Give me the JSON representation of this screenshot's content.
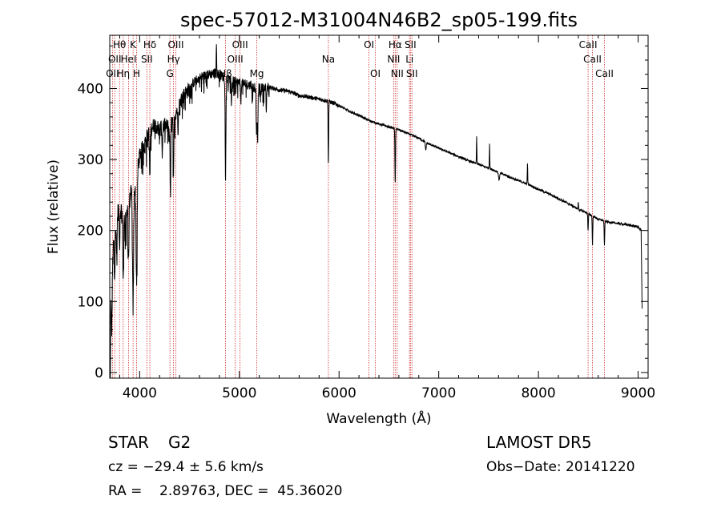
{
  "chart_data": {
    "type": "line",
    "title": "spec-57012-M31004N46B2_sp05-199.fits",
    "xlabel": "Wavelength (Å)",
    "ylabel": "Flux (relative)",
    "xlim": [
      3700,
      9100
    ],
    "ylim": [
      -8,
      475
    ],
    "xticks": [
      4000,
      5000,
      6000,
      7000,
      8000,
      9000
    ],
    "yticks": [
      0,
      100,
      200,
      300,
      400
    ],
    "grid": false,
    "line_color": "#000000",
    "marker_color": "#d03030",
    "continuum": [
      [
        3700,
        80
      ],
      [
        3750,
        210
      ],
      [
        3800,
        235
      ],
      [
        3850,
        215
      ],
      [
        3900,
        245
      ],
      [
        3950,
        265
      ],
      [
        4000,
        305
      ],
      [
        4050,
        325
      ],
      [
        4100,
        340
      ],
      [
        4150,
        350
      ],
      [
        4200,
        342
      ],
      [
        4250,
        348
      ],
      [
        4300,
        345
      ],
      [
        4350,
        362
      ],
      [
        4400,
        380
      ],
      [
        4450,
        392
      ],
      [
        4500,
        400
      ],
      [
        4550,
        410
      ],
      [
        4600,
        415
      ],
      [
        4650,
        418
      ],
      [
        4700,
        420
      ],
      [
        4750,
        422
      ],
      [
        4800,
        420
      ],
      [
        4850,
        415
      ],
      [
        4900,
        412
      ],
      [
        5000,
        408
      ],
      [
        5100,
        405
      ],
      [
        5200,
        400
      ],
      [
        5300,
        402
      ],
      [
        5400,
        398
      ],
      [
        5500,
        396
      ],
      [
        5600,
        390
      ],
      [
        5700,
        388
      ],
      [
        5800,
        385
      ],
      [
        5900,
        382
      ],
      [
        6000,
        376
      ],
      [
        6100,
        368
      ],
      [
        6200,
        362
      ],
      [
        6300,
        355
      ],
      [
        6400,
        350
      ],
      [
        6500,
        346
      ],
      [
        6600,
        342
      ],
      [
        6700,
        336
      ],
      [
        6800,
        330
      ],
      [
        6900,
        322
      ],
      [
        7000,
        316
      ],
      [
        7100,
        310
      ],
      [
        7200,
        304
      ],
      [
        7300,
        298
      ],
      [
        7400,
        293
      ],
      [
        7500,
        288
      ],
      [
        7600,
        282
      ],
      [
        7700,
        276
      ],
      [
        7800,
        270
      ],
      [
        7900,
        265
      ],
      [
        8000,
        258
      ],
      [
        8100,
        252
      ],
      [
        8200,
        245
      ],
      [
        8300,
        238
      ],
      [
        8400,
        230
      ],
      [
        8500,
        224
      ],
      [
        8600,
        216
      ],
      [
        8700,
        212
      ],
      [
        8800,
        210
      ],
      [
        8900,
        208
      ],
      [
        9000,
        205
      ],
      [
        9030,
        200
      ],
      [
        9040,
        90
      ]
    ],
    "features": [
      {
        "x": 3705,
        "depth": 120,
        "width": 4
      },
      {
        "x": 3720,
        "depth": 70,
        "width": 6
      },
      {
        "x": 3750,
        "depth": 70,
        "width": 6
      },
      {
        "x": 3770,
        "depth": 60,
        "width": 5
      },
      {
        "x": 3798,
        "depth": 60,
        "width": 5
      },
      {
        "x": 3835,
        "depth": 90,
        "width": 6
      },
      {
        "x": 3889,
        "depth": 80,
        "width": 6
      },
      {
        "x": 3934,
        "depth": 160,
        "width": 8
      },
      {
        "x": 3969,
        "depth": 150,
        "width": 8
      },
      {
        "x": 4102,
        "depth": 70,
        "width": 5
      },
      {
        "x": 4227,
        "depth": 40,
        "width": 4
      },
      {
        "x": 4308,
        "depth": 90,
        "width": 5
      },
      {
        "x": 4340,
        "depth": 80,
        "width": 5
      },
      {
        "x": 4384,
        "depth": 40,
        "width": 4
      },
      {
        "x": 4861,
        "depth": 130,
        "width": 5
      },
      {
        "x": 4920,
        "depth": 30,
        "width": 4
      },
      {
        "x": 5015,
        "depth": 30,
        "width": 4
      },
      {
        "x": 5172,
        "depth": 70,
        "width": 5
      },
      {
        "x": 5183,
        "depth": 80,
        "width": 5
      },
      {
        "x": 5270,
        "depth": 35,
        "width": 4
      },
      {
        "x": 5893,
        "depth": 90,
        "width": 4
      },
      {
        "x": 6563,
        "depth": 80,
        "width": 4
      },
      {
        "x": 6870,
        "depth": 12,
        "width": 6
      },
      {
        "x": 7605,
        "depth": 10,
        "width": 8
      },
      {
        "x": 8498,
        "depth": 25,
        "width": 4
      },
      {
        "x": 8542,
        "depth": 40,
        "width": 4
      },
      {
        "x": 8662,
        "depth": 35,
        "width": 4
      }
    ],
    "emissions": [
      {
        "x": 4770,
        "height": 50
      },
      {
        "x": 7380,
        "height": 40
      },
      {
        "x": 7510,
        "height": 35
      },
      {
        "x": 7890,
        "height": 30
      },
      {
        "x": 8400,
        "height": 10
      }
    ],
    "lines": [
      {
        "x": 3727,
        "label": "OII",
        "row": 2
      },
      {
        "x": 3750,
        "label": "OII",
        "row": 1
      },
      {
        "x": 3798,
        "label": "Hθ",
        "row": 0
      },
      {
        "x": 3835,
        "label": "Hη",
        "row": 2
      },
      {
        "x": 3889,
        "label": "HeI",
        "row": 1
      },
      {
        "x": 3934,
        "label": "K",
        "row": 0
      },
      {
        "x": 3969,
        "label": "H",
        "row": 2
      },
      {
        "x": 4072,
        "label": "SII",
        "row": 1
      },
      {
        "x": 4102,
        "label": "Hδ",
        "row": 0
      },
      {
        "x": 4304,
        "label": "G",
        "row": 2
      },
      {
        "x": 4340,
        "label": "Hγ",
        "row": 1
      },
      {
        "x": 4363,
        "label": "OIII",
        "row": 0
      },
      {
        "x": 4861,
        "label": "Hβ",
        "row": 2
      },
      {
        "x": 4959,
        "label": "OIII",
        "row": 1
      },
      {
        "x": 5007,
        "label": "OIII",
        "row": 0
      },
      {
        "x": 5175,
        "label": "Mg",
        "row": 2
      },
      {
        "x": 5893,
        "label": "Na",
        "row": 1
      },
      {
        "x": 6300,
        "label": "OI",
        "row": 0
      },
      {
        "x": 6364,
        "label": "OI",
        "row": 2
      },
      {
        "x": 6548,
        "label": "NII",
        "row": 1
      },
      {
        "x": 6563,
        "label": "Hα",
        "row": 0
      },
      {
        "x": 6583,
        "label": "NII",
        "row": 2
      },
      {
        "x": 6707,
        "label": "Li",
        "row": 1
      },
      {
        "x": 6716,
        "label": "SII",
        "row": 0
      },
      {
        "x": 6731,
        "label": "SII",
        "row": 2
      },
      {
        "x": 8498,
        "label": "CaII",
        "row": 0
      },
      {
        "x": 8542,
        "label": "CaII",
        "row": 1
      },
      {
        "x": 8662,
        "label": "CaII",
        "row": 2
      }
    ]
  },
  "info": {
    "class": "STAR",
    "subclass": "G2",
    "survey": "LAMOST DR5",
    "cz": "cz = −29.4 ± 5.6 km/s",
    "obsdate": "Obs−Date: 20141220",
    "radec": "RA =    2.89763, DEC =  45.36020"
  }
}
